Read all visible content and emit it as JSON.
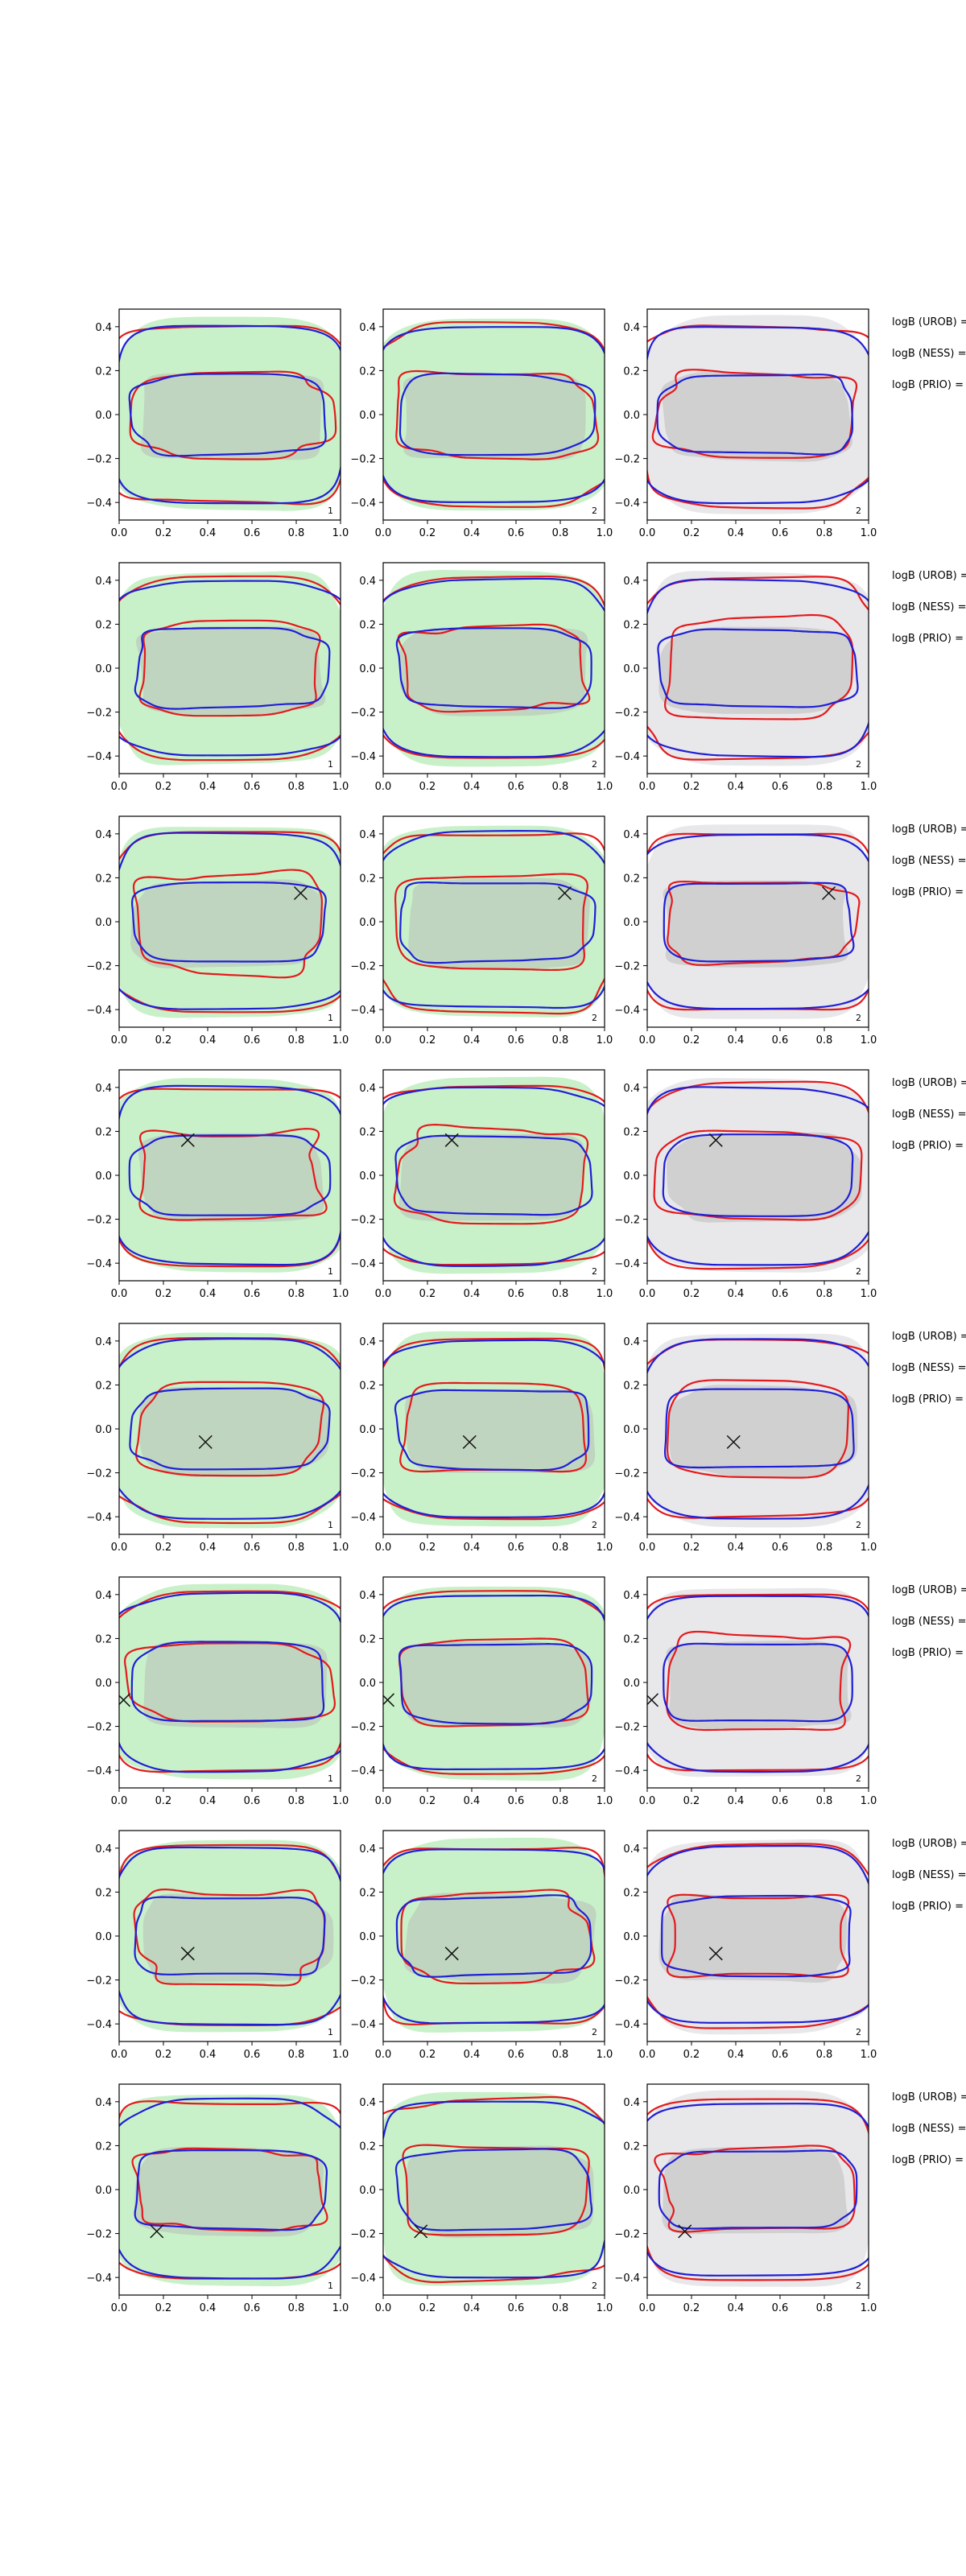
{
  "figure": {
    "n_rows": 8,
    "n_cols": 3,
    "background_colors": {
      "1": "#c9f1c9",
      "2": "#c9f1c9",
      "3": "#e8e7ea"
    },
    "series_colors": {
      "red": "#e41a1c",
      "blue": "#1f1fd6",
      "grey_fill": "#b4b4b4",
      "marker": "#111111"
    }
  },
  "chart_data": {
    "type": "scatter",
    "xlim": [
      0.0,
      1.0
    ],
    "ylim": [
      -0.48,
      0.48
    ],
    "x_ticks": [
      "0.0",
      "0.2",
      "0.4",
      "0.6",
      "0.8",
      "1.0"
    ],
    "y_ticks": [
      "0.4",
      "0.2",
      "0.0",
      "−0.2",
      "−0.4"
    ],
    "x_tick_values": [
      0.0,
      0.2,
      0.4,
      0.6,
      0.8,
      1.0
    ],
    "y_tick_values": [
      0.4,
      0.2,
      0.0,
      -0.2,
      -0.4
    ],
    "grid": false,
    "panel_labels": [
      "1",
      "2",
      "2"
    ],
    "row_annotations": [
      "logB (UROB) =",
      "logB (NESS) =",
      "logB (PRIO) ="
    ],
    "series": [
      {
        "name": "outer contour (red)",
        "color": "red"
      },
      {
        "name": "outer contour (blue)",
        "color": "blue"
      },
      {
        "name": "inner contour (red)",
        "color": "red"
      },
      {
        "name": "inner contour (blue)",
        "color": "blue"
      }
    ],
    "markers": [
      null,
      null,
      {
        "x": 0.82,
        "y": 0.13
      },
      {
        "x": 0.31,
        "y": 0.16
      },
      {
        "x": 0.39,
        "y": -0.06
      },
      {
        "x": 0.02,
        "y": -0.08
      },
      {
        "x": 0.31,
        "y": -0.08
      },
      {
        "x": 0.17,
        "y": -0.19
      }
    ]
  }
}
